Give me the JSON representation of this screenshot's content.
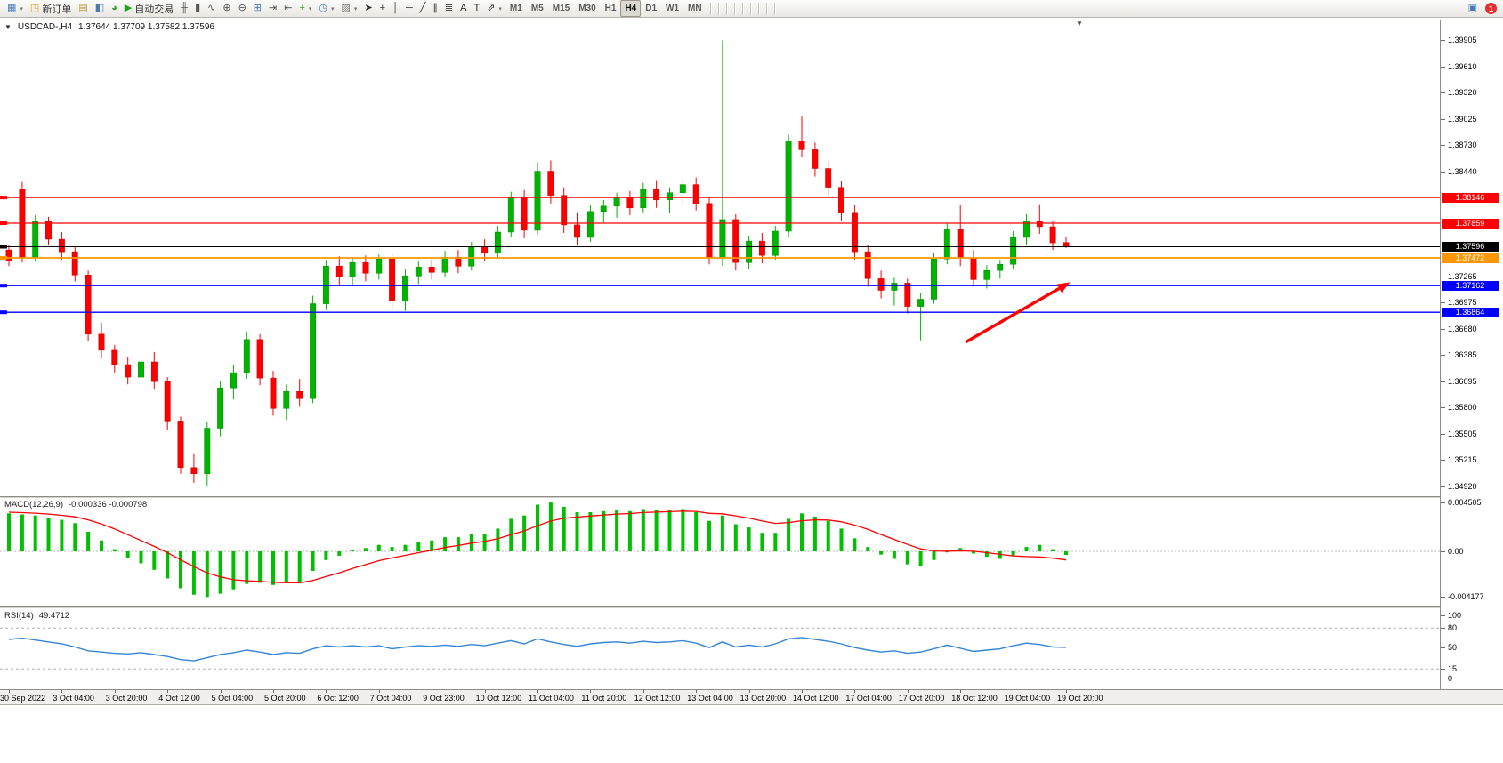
{
  "window": {
    "symbol_label": "USDCAD-,H4",
    "ohlc_text": "1.37644 1.37709 1.37582 1.37596",
    "collapse_glyph": "▼",
    "shift_marker_glyph": "▼"
  },
  "toolbar": {
    "active_timeframe": "H4",
    "items": [
      {
        "t": "btn",
        "name": "new-chart-button",
        "glyph": "▦",
        "gc": "#4a7ab5",
        "dd": true
      },
      {
        "t": "btn",
        "name": "new-order-button",
        "label": "新订单",
        "glyph": "◳",
        "gc": "#d99e2b"
      },
      {
        "t": "sep"
      },
      {
        "t": "btn",
        "name": "market-watch-icon",
        "glyph": "▤",
        "gc": "#c09a30"
      },
      {
        "t": "btn",
        "name": "data-window-icon",
        "glyph": "◧",
        "gc": "#4a7ab5"
      },
      {
        "t": "btn",
        "name": "navigator-icon",
        "glyph": "◕",
        "gc": "#3f9b3f"
      },
      {
        "t": "sep"
      },
      {
        "t": "btn",
        "name": "autotrading-button",
        "label": "自动交易",
        "glyph": "▶",
        "gc": "#18a818"
      },
      {
        "t": "sep"
      },
      {
        "t": "btn",
        "name": "bar-chart-icon",
        "glyph": "╫",
        "gc": "#555555"
      },
      {
        "t": "btn",
        "name": "candlestick-chart-icon",
        "glyph": "▮",
        "gc": "#555555"
      },
      {
        "t": "btn",
        "name": "line-chart-icon",
        "glyph": "∿",
        "gc": "#555555"
      },
      {
        "t": "sep"
      },
      {
        "t": "btn",
        "name": "zoom-in-icon",
        "glyph": "⊕",
        "gc": "#555555"
      },
      {
        "t": "btn",
        "name": "zoom-out-icon",
        "glyph": "⊖",
        "gc": "#555555"
      },
      {
        "t": "sep"
      },
      {
        "t": "btn",
        "name": "tile-windows-icon",
        "glyph": "⊞",
        "gc": "#4a7ab5"
      },
      {
        "t": "btn",
        "name": "auto-scroll-icon",
        "glyph": "⇥",
        "gc": "#555555"
      },
      {
        "t": "btn",
        "name": "chart-shift-icon",
        "glyph": "⇤",
        "gc": "#555555"
      },
      {
        "t": "sep"
      },
      {
        "t": "btn",
        "name": "indicators-icon",
        "glyph": "+",
        "gc": "#3f9b3f",
        "dd": true
      },
      {
        "t": "btn",
        "name": "periods-icon",
        "glyph": "◷",
        "gc": "#4a7ab5",
        "dd": true
      },
      {
        "t": "btn",
        "name": "templates-icon",
        "glyph": "▨",
        "gc": "#777777",
        "dd": true
      },
      {
        "t": "sep"
      },
      {
        "t": "btn",
        "name": "cursor-icon",
        "glyph": "➤",
        "gc": "#333333"
      },
      {
        "t": "btn",
        "name": "crosshair-icon",
        "glyph": "+",
        "gc": "#333333"
      },
      {
        "t": "sep"
      },
      {
        "t": "btn",
        "name": "vertical-line-icon",
        "glyph": "│",
        "gc": "#333333"
      },
      {
        "t": "btn",
        "name": "horizontal-line-icon",
        "glyph": "─",
        "gc": "#333333"
      },
      {
        "t": "btn",
        "name": "trendline-icon",
        "glyph": "╱",
        "gc": "#333333"
      },
      {
        "t": "btn",
        "name": "equidistant-channel-icon",
        "glyph": "∥",
        "gc": "#333333"
      },
      {
        "t": "btn",
        "name": "fibonacci-icon",
        "glyph": "≣",
        "gc": "#333333"
      },
      {
        "t": "btn",
        "name": "text-icon",
        "glyph": "A",
        "gc": "#333333"
      },
      {
        "t": "btn",
        "name": "text-label-icon",
        "glyph": "T",
        "gc": "#333333"
      },
      {
        "t": "btn",
        "name": "arrows-icon",
        "glyph": "⇗",
        "gc": "#333333",
        "dd": true
      },
      {
        "t": "sep"
      },
      {
        "t": "tf",
        "name": "timeframe-m1",
        "label": "M1"
      },
      {
        "t": "tf",
        "name": "timeframe-m5",
        "label": "M5"
      },
      {
        "t": "tf",
        "name": "timeframe-m15",
        "label": "M15"
      },
      {
        "t": "tf",
        "name": "timeframe-m30",
        "label": "M30"
      },
      {
        "t": "tf",
        "name": "timeframe-h1",
        "label": "H1"
      },
      {
        "t": "tf",
        "name": "timeframe-h4",
        "label": "H4"
      },
      {
        "t": "tf",
        "name": "timeframe-d1",
        "label": "D1"
      },
      {
        "t": "tf",
        "name": "timeframe-w1",
        "label": "W1"
      },
      {
        "t": "tf",
        "name": "timeframe-mn",
        "label": "MN"
      }
    ],
    "right_items": [
      {
        "name": "chart-window-icon",
        "glyph": "▣",
        "gc": "#4a7ab5"
      },
      {
        "name": "alert-count-badge",
        "label": "1",
        "bg": "#e03030"
      }
    ]
  },
  "panels": {
    "macd": {
      "label": "MACD(12,26,9)",
      "values_text": "-0.000336 -0.000798"
    },
    "rsi": {
      "label": "RSI(14)",
      "value_text": "49.4712"
    }
  },
  "colors": {
    "candle_up": "#00B400",
    "candle_down": "#FF0000",
    "resistance_line": "#FF0000",
    "pivot_line": "#FF9800",
    "support_line": "#0000FF",
    "bid_line": "#000000",
    "macd_histogram": "#00C000",
    "macd_signal": "#FF0000",
    "rsi_line": "#3585D6",
    "annotation": "#FF0000"
  },
  "chart_data": [
    {
      "type": "candlestick",
      "name": "USDCAD H4 price chart",
      "ylim": [
        1.3483,
        1.39955
      ],
      "grid": false,
      "y_ticks": [
        "1.39905",
        "1.39610",
        "1.39320",
        "1.39025",
        "1.38730",
        "1.38440",
        "1.37265",
        "1.36975",
        "1.36680",
        "1.36385",
        "1.36095",
        "1.35800",
        "1.35505",
        "1.35215",
        "1.34920"
      ],
      "x_labels": [
        "30 Sep 2022",
        "3 Oct 04:00",
        "3 Oct 20:00",
        "4 Oct 12:00",
        "5 Oct 04:00",
        "5 Oct 20:00",
        "6 Oct 12:00",
        "7 Oct 04:00",
        "9 Oct 23:00",
        "10 Oct 12:00",
        "11 Oct 04:00",
        "11 Oct 20:00",
        "12 Oct 12:00",
        "13 Oct 04:00",
        "13 Oct 20:00",
        "14 Oct 12:00",
        "17 Oct 04:00",
        "17 Oct 20:00",
        "18 Oct 12:00",
        "19 Oct 04:00",
        "19 Oct 20:00"
      ],
      "label_every": 4,
      "candles_ohlc": [
        [
          1.3756,
          1.3762,
          1.3738,
          1.3744
        ],
        [
          1.3824,
          1.3832,
          1.3742,
          1.3747
        ],
        [
          1.3747,
          1.3795,
          1.3743,
          1.3788
        ],
        [
          1.3788,
          1.3793,
          1.3762,
          1.3768
        ],
        [
          1.3768,
          1.3776,
          1.3745,
          1.3754
        ],
        [
          1.3754,
          1.376,
          1.3721,
          1.3728
        ],
        [
          1.3728,
          1.3733,
          1.3654,
          1.3662
        ],
        [
          1.3662,
          1.3675,
          1.3635,
          1.3644
        ],
        [
          1.3644,
          1.365,
          1.3618,
          1.3628
        ],
        [
          1.3628,
          1.3636,
          1.3606,
          1.3614
        ],
        [
          1.3614,
          1.3639,
          1.3608,
          1.3631
        ],
        [
          1.3631,
          1.3642,
          1.3601,
          1.3609
        ],
        [
          1.3609,
          1.3614,
          1.3555,
          1.3565
        ],
        [
          1.3565,
          1.357,
          1.3506,
          1.3513
        ],
        [
          1.3513,
          1.3529,
          1.3496,
          1.3506
        ],
        [
          1.3506,
          1.3564,
          1.3493,
          1.3557
        ],
        [
          1.3557,
          1.361,
          1.3548,
          1.3602
        ],
        [
          1.3602,
          1.3628,
          1.3589,
          1.3619
        ],
        [
          1.3619,
          1.3665,
          1.3612,
          1.3656
        ],
        [
          1.3656,
          1.3662,
          1.3605,
          1.3613
        ],
        [
          1.3613,
          1.3621,
          1.3571,
          1.3579
        ],
        [
          1.3579,
          1.3606,
          1.3566,
          1.3598
        ],
        [
          1.3598,
          1.3612,
          1.3581,
          1.359
        ],
        [
          1.359,
          1.3705,
          1.3585,
          1.3696
        ],
        [
          1.3696,
          1.3745,
          1.3689,
          1.3738
        ],
        [
          1.3738,
          1.3749,
          1.3716,
          1.3726
        ],
        [
          1.3726,
          1.3748,
          1.3717,
          1.3742
        ],
        [
          1.3742,
          1.375,
          1.3721,
          1.373
        ],
        [
          1.373,
          1.3751,
          1.3723,
          1.3746
        ],
        [
          1.3746,
          1.3753,
          1.369,
          1.3699
        ],
        [
          1.3699,
          1.3734,
          1.3688,
          1.3727
        ],
        [
          1.3727,
          1.3744,
          1.3718,
          1.3737
        ],
        [
          1.3737,
          1.3745,
          1.3723,
          1.3731
        ],
        [
          1.3731,
          1.3755,
          1.3726,
          1.3748
        ],
        [
          1.3748,
          1.3756,
          1.373,
          1.3738
        ],
        [
          1.3738,
          1.3765,
          1.3733,
          1.3759
        ],
        [
          1.3759,
          1.3768,
          1.3744,
          1.3753
        ],
        [
          1.3753,
          1.3783,
          1.3748,
          1.3776
        ],
        [
          1.3776,
          1.3821,
          1.377,
          1.3814
        ],
        [
          1.3814,
          1.3823,
          1.3769,
          1.3778
        ],
        [
          1.3778,
          1.3854,
          1.3773,
          1.3844
        ],
        [
          1.3844,
          1.3856,
          1.3808,
          1.3817
        ],
        [
          1.3817,
          1.3826,
          1.3775,
          1.3784
        ],
        [
          1.3784,
          1.3798,
          1.3762,
          1.377
        ],
        [
          1.377,
          1.3806,
          1.3765,
          1.3799
        ],
        [
          1.3799,
          1.3812,
          1.3786,
          1.3805
        ],
        [
          1.3805,
          1.382,
          1.3792,
          1.3814
        ],
        [
          1.3814,
          1.3822,
          1.3795,
          1.3803
        ],
        [
          1.3803,
          1.3831,
          1.3798,
          1.3824
        ],
        [
          1.3824,
          1.3834,
          1.3803,
          1.3812
        ],
        [
          1.3812,
          1.3826,
          1.3797,
          1.382
        ],
        [
          1.382,
          1.3835,
          1.3807,
          1.3829
        ],
        [
          1.3829,
          1.3837,
          1.38,
          1.3808
        ],
        [
          1.3808,
          1.3815,
          1.374,
          1.3748
        ],
        [
          1.3748,
          1.399,
          1.3738,
          1.379
        ],
        [
          1.379,
          1.3796,
          1.3733,
          1.3742
        ],
        [
          1.3742,
          1.3772,
          1.3735,
          1.3766
        ],
        [
          1.3766,
          1.3775,
          1.3741,
          1.375
        ],
        [
          1.375,
          1.3783,
          1.3745,
          1.3777
        ],
        [
          1.3777,
          1.3885,
          1.377,
          1.3878
        ],
        [
          1.3878,
          1.3905,
          1.386,
          1.3868
        ],
        [
          1.3868,
          1.3876,
          1.3838,
          1.3847
        ],
        [
          1.3847,
          1.3855,
          1.3817,
          1.3826
        ],
        [
          1.3826,
          1.3833,
          1.3789,
          1.3798
        ],
        [
          1.3798,
          1.3806,
          1.3745,
          1.3754
        ],
        [
          1.3754,
          1.3762,
          1.3715,
          1.3724
        ],
        [
          1.3724,
          1.3733,
          1.3702,
          1.3711
        ],
        [
          1.3711,
          1.3725,
          1.3694,
          1.3719
        ],
        [
          1.3719,
          1.3724,
          1.3685,
          1.3693
        ],
        [
          1.3693,
          1.3708,
          1.3655,
          1.3701
        ],
        [
          1.3701,
          1.3753,
          1.3696,
          1.3746
        ],
        [
          1.3746,
          1.3786,
          1.374,
          1.3779
        ],
        [
          1.3779,
          1.3806,
          1.3738,
          1.3747
        ],
        [
          1.3747,
          1.3756,
          1.3715,
          1.3723
        ],
        [
          1.3723,
          1.3739,
          1.3713,
          1.3733
        ],
        [
          1.3733,
          1.3745,
          1.3724,
          1.374
        ],
        [
          1.374,
          1.3777,
          1.3735,
          1.377
        ],
        [
          1.377,
          1.3796,
          1.3762,
          1.3788
        ],
        [
          1.3788,
          1.3807,
          1.3774,
          1.3782
        ],
        [
          1.3782,
          1.3788,
          1.3756,
          1.3764
        ],
        [
          1.37644,
          1.37709,
          1.37582,
          1.37596
        ]
      ],
      "hlines": [
        {
          "price": 1.38146,
          "color": "#FF0000",
          "w": 1.2
        },
        {
          "price": 1.37859,
          "color": "#FF0000",
          "w": 1.2
        },
        {
          "price": 1.37472,
          "color": "#FF9800",
          "w": 1.8
        },
        {
          "price": 1.37162,
          "color": "#0000FF",
          "w": 1.4
        },
        {
          "price": 1.36864,
          "color": "#0000FF",
          "w": 1.4
        }
      ],
      "current_price": 1.37596,
      "axis_badges": [
        {
          "label": "1.38146",
          "price": 1.38146,
          "bg": "#FF0000"
        },
        {
          "label": "1.37859",
          "price": 1.37859,
          "bg": "#FF0000"
        },
        {
          "label": "1.37596",
          "price": 1.37596,
          "bg": "#000000"
        },
        {
          "label": "1.37472",
          "price": 1.37472,
          "bg": "#FF9800"
        },
        {
          "label": "1.37162",
          "price": 1.37162,
          "bg": "#0000FF"
        },
        {
          "label": "1.36864",
          "price": 1.36864,
          "bg": "#0000FF"
        }
      ],
      "arrow_annotation": {
        "from_index": 72.4,
        "from_price": 1.3653,
        "to_index": 80.3,
        "to_price": 1.372,
        "color": "#FF0000"
      }
    },
    {
      "type": "bar",
      "name": "MACD(12,26,9)",
      "current_values": "-0.000336 -0.000798",
      "ylim": [
        -0.004177,
        0.004505
      ],
      "y_ticks": [
        "0.004505",
        "0.00",
        "-0.004177"
      ],
      "histogram": [
        0.0035,
        0.0034,
        0.0033,
        0.0031,
        0.0029,
        0.0026,
        0.0018,
        0.001,
        0.0002,
        -0.0006,
        -0.0011,
        -0.0017,
        -0.0025,
        -0.0034,
        -0.004,
        -0.0042,
        -0.0039,
        -0.0035,
        -0.003,
        -0.0029,
        -0.0031,
        -0.0029,
        -0.0028,
        -0.0018,
        -0.0008,
        -0.0004,
        0.0001,
        0.0003,
        0.0006,
        0.0004,
        0.0006,
        0.0009,
        0.001,
        0.0013,
        0.0013,
        0.0016,
        0.0016,
        0.0021,
        0.003,
        0.0033,
        0.0043,
        0.0045,
        0.0041,
        0.0036,
        0.0036,
        0.0037,
        0.0038,
        0.0037,
        0.0039,
        0.0038,
        0.0038,
        0.0039,
        0.0036,
        0.0028,
        0.0033,
        0.0025,
        0.0022,
        0.0017,
        0.0017,
        0.003,
        0.0035,
        0.0032,
        0.0028,
        0.0021,
        0.0012,
        0.0004,
        -0.0003,
        -0.0007,
        -0.0012,
        -0.0014,
        -0.0008,
        -0.0001,
        0.0003,
        -0.0002,
        -0.0005,
        -0.0007,
        -0.0004,
        0.0004,
        0.0006,
        0.0002,
        -0.000336
      ],
      "signal": [
        0.0036,
        0.00356,
        0.00351,
        0.00343,
        0.00332,
        0.00318,
        0.0029,
        0.00252,
        0.00206,
        0.00153,
        0.001,
        0.00046,
        -0.00013,
        -0.00078,
        -0.00142,
        -0.00198,
        -0.00236,
        -0.00261,
        -0.00271,
        -0.00277,
        -0.00286,
        -0.00289,
        -0.00289,
        -0.00269,
        -0.00233,
        -0.00197,
        -0.00158,
        -0.00122,
        -0.00086,
        -0.00061,
        -0.00037,
        -0.00012,
        0.00011,
        0.00035,
        0.00054,
        0.00075,
        0.00092,
        0.00116,
        0.00153,
        0.00188,
        0.00236,
        0.00279,
        0.00305,
        0.00316,
        0.00325,
        0.00334,
        0.00343,
        0.00348,
        0.00357,
        0.00361,
        0.00365,
        0.0037,
        0.00368,
        0.0035,
        0.00346,
        0.00327,
        0.00306,
        0.00279,
        0.00257,
        0.00265,
        0.00282,
        0.0029,
        0.00288,
        0.00272,
        0.00242,
        0.00202,
        0.00155,
        0.0011,
        0.00064,
        0.00023,
        3e-05,
        2e-05,
        4e-05,
        1e-05,
        -0.00012,
        -0.00028,
        -0.00042,
        -0.00048,
        -0.00052,
        -0.00063,
        -0.000798
      ]
    },
    {
      "type": "line",
      "name": "RSI(14)",
      "current_value": "49.4712",
      "ylim": [
        0,
        100
      ],
      "levels": [
        80,
        50,
        15
      ],
      "y_ticks": [
        "100",
        "80",
        "50",
        "15",
        "0"
      ],
      "values": [
        62,
        64,
        61,
        58,
        55,
        50,
        44,
        42,
        40,
        39,
        41,
        38,
        35,
        30,
        28,
        33,
        38,
        41,
        45,
        42,
        38,
        41,
        40,
        47,
        52,
        50,
        52,
        50,
        52,
        47,
        50,
        52,
        51,
        53,
        51,
        54,
        52,
        56,
        60,
        55,
        63,
        58,
        54,
        51,
        55,
        57,
        58,
        56,
        59,
        57,
        58,
        60,
        56,
        49,
        58,
        50,
        53,
        50,
        55,
        63,
        65,
        62,
        59,
        55,
        49,
        45,
        42,
        44,
        40,
        42,
        47,
        53,
        48,
        43,
        45,
        47,
        52,
        56,
        54,
        50,
        49.4712
      ]
    }
  ]
}
